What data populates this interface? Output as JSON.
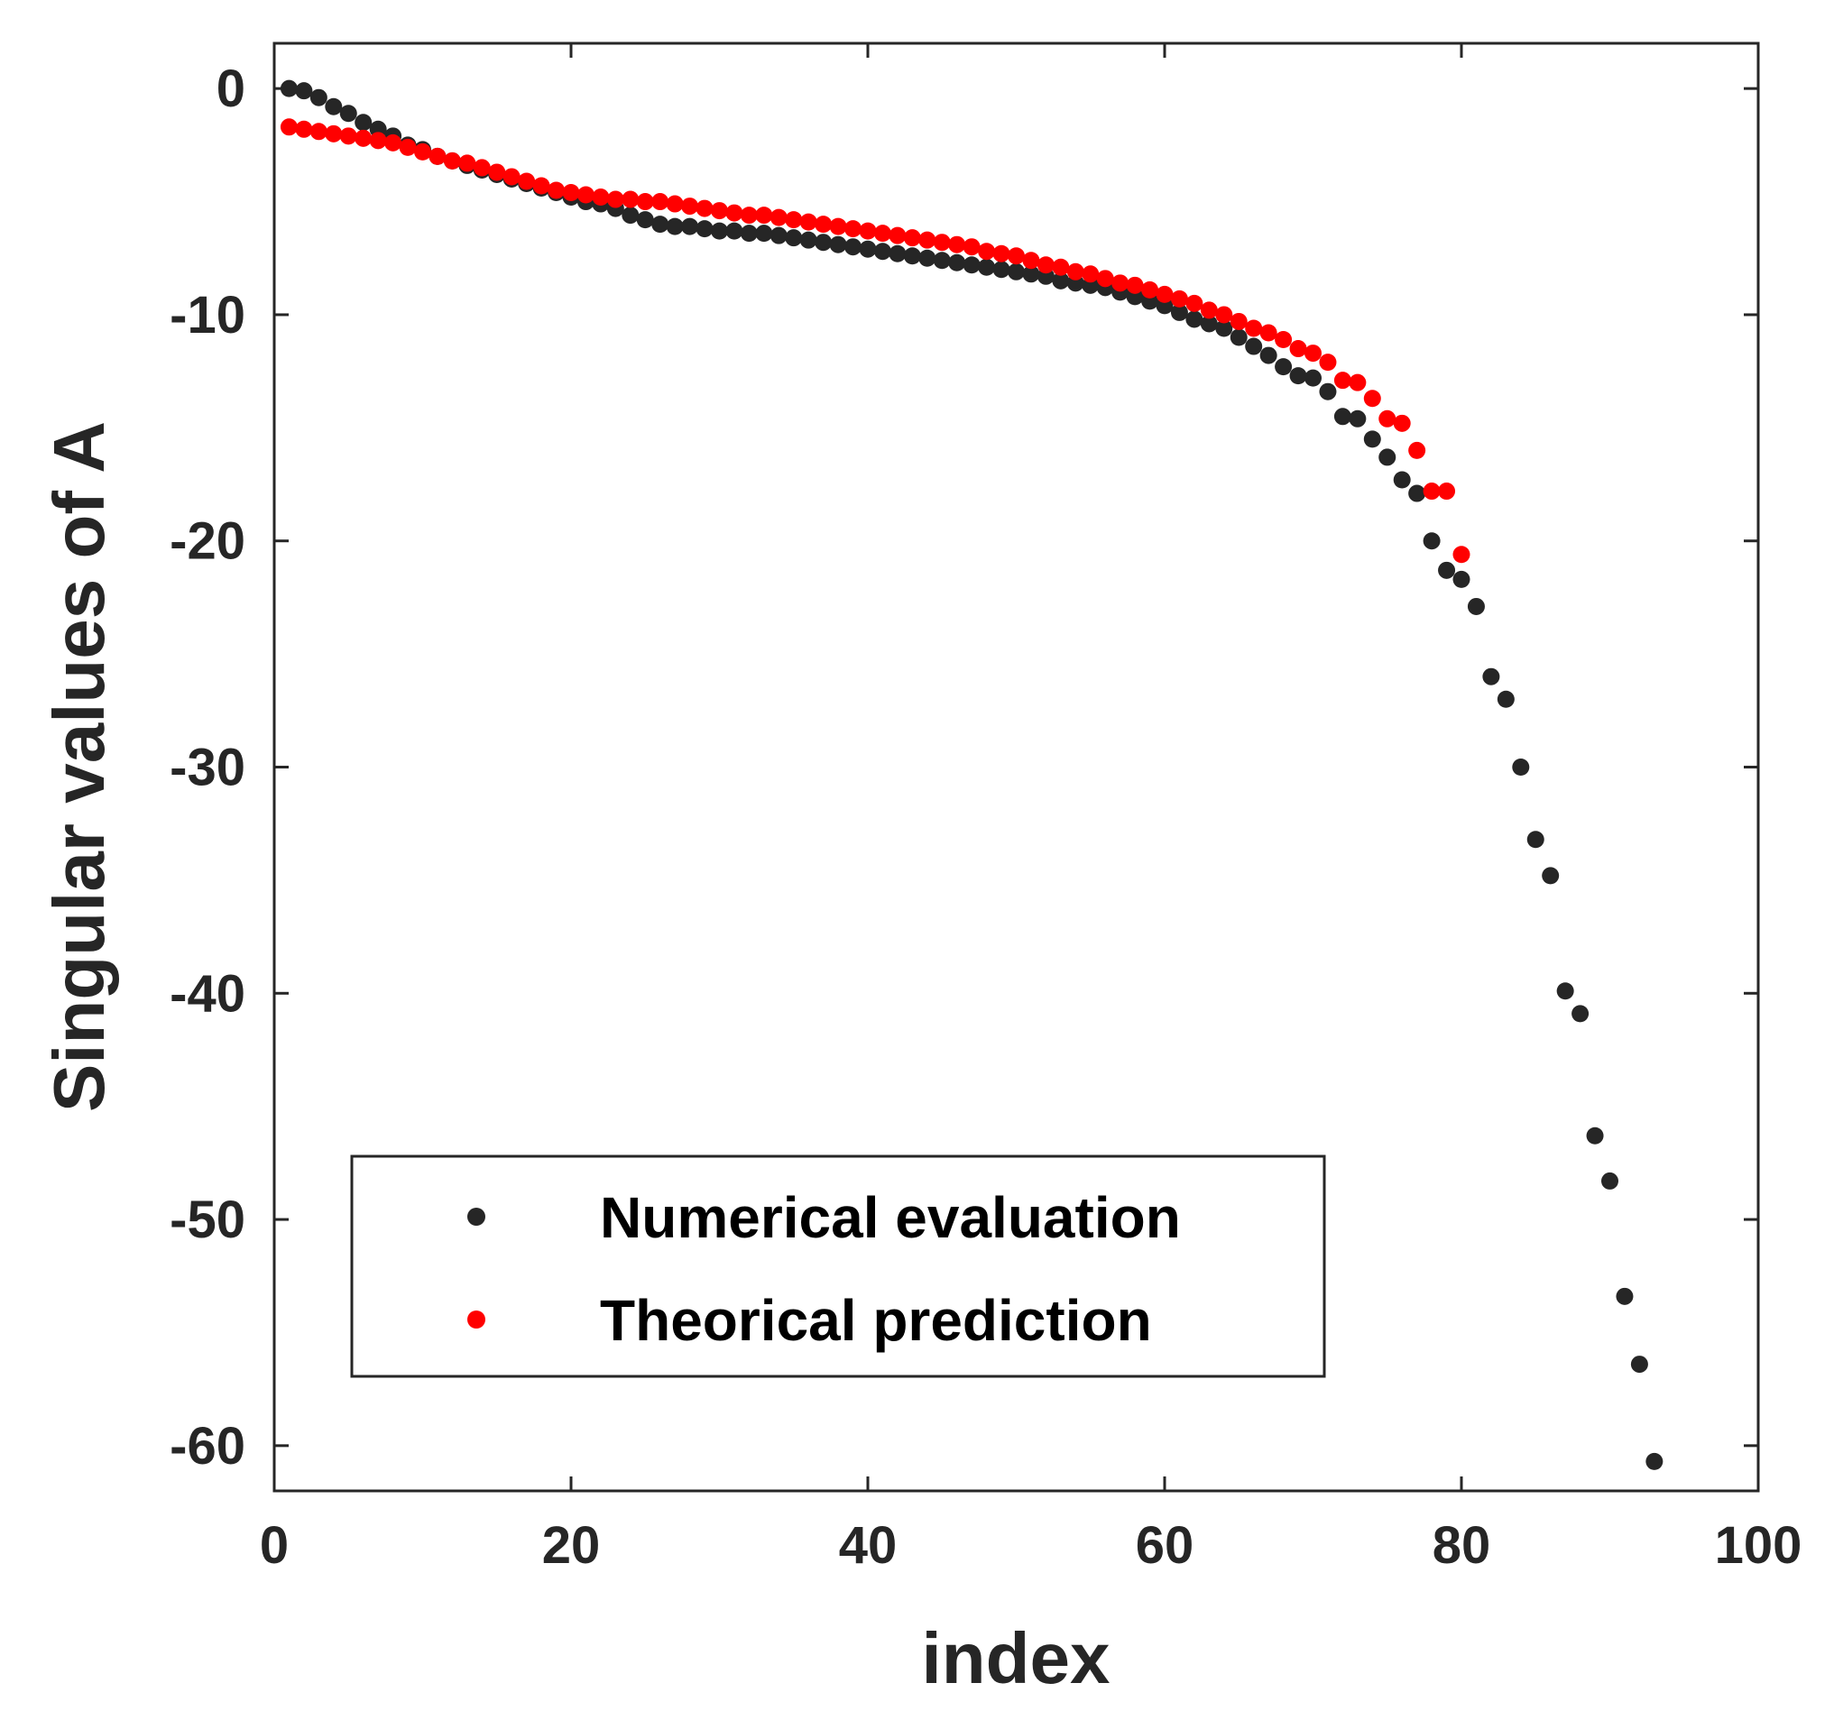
{
  "chart_data": {
    "type": "scatter",
    "title": "",
    "xlabel": "index",
    "ylabel": "Singular values of A",
    "xlim": [
      0,
      100
    ],
    "ylim": [
      -62,
      2
    ],
    "xticks": [
      0,
      20,
      40,
      60,
      80,
      100
    ],
    "yticks": [
      0,
      -10,
      -20,
      -30,
      -40,
      -50,
      -60
    ],
    "xtick_labels": [
      "0",
      "20",
      "40",
      "60",
      "80",
      "100"
    ],
    "ytick_labels": [
      "0",
      "-10",
      "-20",
      "-30",
      "-40",
      "-50",
      "-60"
    ],
    "grid": false,
    "legend_position": "bottom-left",
    "series": [
      {
        "name": "Numerical evaluation",
        "color": "#262626",
        "x": [
          1,
          2,
          3,
          4,
          5,
          6,
          7,
          8,
          9,
          10,
          11,
          12,
          13,
          14,
          15,
          16,
          17,
          18,
          19,
          20,
          21,
          22,
          23,
          24,
          25,
          26,
          27,
          28,
          29,
          30,
          31,
          32,
          33,
          34,
          35,
          36,
          37,
          38,
          39,
          40,
          41,
          42,
          43,
          44,
          45,
          46,
          47,
          48,
          49,
          50,
          51,
          52,
          53,
          54,
          55,
          56,
          57,
          58,
          59,
          60,
          61,
          62,
          63,
          64,
          65,
          66,
          67,
          68,
          69,
          70,
          71,
          72,
          73,
          74,
          75,
          76,
          77,
          78,
          79,
          80,
          81,
          82,
          83,
          84,
          85,
          86,
          87,
          88,
          89,
          90,
          91,
          92,
          93
        ],
        "values": [
          0.0,
          -0.1,
          -0.4,
          -0.8,
          -1.1,
          -1.5,
          -1.8,
          -2.1,
          -2.5,
          -2.7,
          -3.0,
          -3.2,
          -3.4,
          -3.6,
          -3.8,
          -4.0,
          -4.2,
          -4.4,
          -4.6,
          -4.8,
          -5.0,
          -5.1,
          -5.3,
          -5.6,
          -5.8,
          -6.0,
          -6.1,
          -6.1,
          -6.2,
          -6.3,
          -6.3,
          -6.4,
          -6.4,
          -6.5,
          -6.6,
          -6.7,
          -6.8,
          -6.9,
          -7.0,
          -7.1,
          -7.2,
          -7.3,
          -7.4,
          -7.5,
          -7.6,
          -7.7,
          -7.8,
          -7.9,
          -8.0,
          -8.1,
          -8.2,
          -8.3,
          -8.5,
          -8.6,
          -8.7,
          -8.8,
          -9.0,
          -9.2,
          -9.4,
          -9.6,
          -9.9,
          -10.2,
          -10.4,
          -10.6,
          -11.0,
          -11.4,
          -11.8,
          -12.3,
          -12.7,
          -12.8,
          -13.4,
          -14.5,
          -14.6,
          -15.5,
          -16.3,
          -17.3,
          -17.9,
          -20.0,
          -21.3,
          -21.7,
          -22.9,
          -26.0,
          -27.0,
          -30.0,
          -33.2,
          -34.8,
          -39.9,
          -40.9,
          -46.3,
          -48.3,
          -53.4,
          -56.4,
          -60.7
        ]
      },
      {
        "name": "Theorical prediction",
        "color": "#ff0000",
        "x": [
          1,
          2,
          3,
          4,
          5,
          6,
          7,
          8,
          9,
          10,
          11,
          12,
          13,
          14,
          15,
          16,
          17,
          18,
          19,
          20,
          21,
          22,
          23,
          24,
          25,
          26,
          27,
          28,
          29,
          30,
          31,
          32,
          33,
          34,
          35,
          36,
          37,
          38,
          39,
          40,
          41,
          42,
          43,
          44,
          45,
          46,
          47,
          48,
          49,
          50,
          51,
          52,
          53,
          54,
          55,
          56,
          57,
          58,
          59,
          60,
          61,
          62,
          63,
          64,
          65,
          66,
          67,
          68,
          69,
          70,
          71,
          72,
          73,
          74,
          75,
          76,
          77,
          78,
          79,
          80
        ],
        "values": [
          -1.7,
          -1.8,
          -1.9,
          -2.0,
          -2.1,
          -2.2,
          -2.3,
          -2.4,
          -2.6,
          -2.8,
          -3.0,
          -3.2,
          -3.3,
          -3.5,
          -3.7,
          -3.9,
          -4.1,
          -4.3,
          -4.5,
          -4.6,
          -4.7,
          -4.8,
          -4.9,
          -4.9,
          -5.0,
          -5.0,
          -5.1,
          -5.2,
          -5.3,
          -5.4,
          -5.5,
          -5.6,
          -5.6,
          -5.7,
          -5.8,
          -5.9,
          -6.0,
          -6.1,
          -6.2,
          -6.3,
          -6.4,
          -6.5,
          -6.6,
          -6.7,
          -6.8,
          -6.9,
          -7.0,
          -7.2,
          -7.3,
          -7.4,
          -7.6,
          -7.8,
          -7.9,
          -8.1,
          -8.2,
          -8.4,
          -8.6,
          -8.7,
          -8.9,
          -9.1,
          -9.3,
          -9.5,
          -9.8,
          -10.0,
          -10.3,
          -10.6,
          -10.8,
          -11.1,
          -11.5,
          -11.7,
          -12.1,
          -12.9,
          -13.0,
          -13.7,
          -14.6,
          -14.8,
          -16.0,
          -17.8,
          -17.8,
          -20.6
        ]
      }
    ]
  }
}
